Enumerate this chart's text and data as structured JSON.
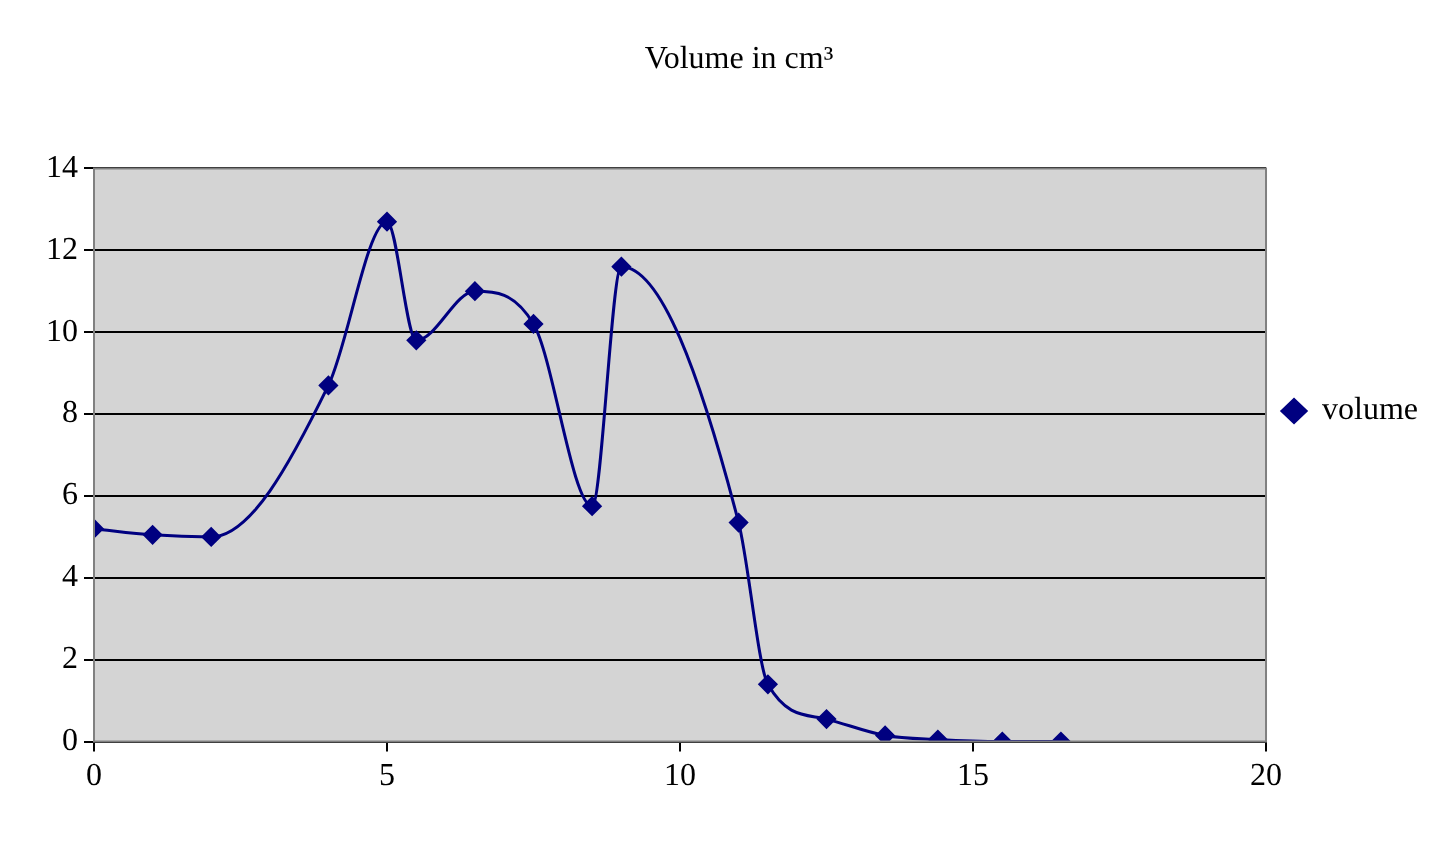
{
  "chart_data": {
    "type": "line",
    "title": "Volume in cm³",
    "x": [
      0,
      1,
      2,
      4,
      5,
      5.5,
      6.5,
      7.5,
      8.5,
      9,
      11,
      11.5,
      12.5,
      13.5,
      14.4,
      15.5,
      16.5
    ],
    "series": [
      {
        "name": "volume",
        "color": "#000080",
        "values": [
          5.2,
          5.05,
          5.0,
          8.7,
          12.7,
          9.8,
          11.0,
          10.2,
          5.75,
          11.6,
          5.35,
          1.4,
          0.55,
          0.15,
          0.05,
          0,
          0
        ]
      }
    ],
    "xlim": [
      0,
      20
    ],
    "xticks": [
      0,
      5,
      10,
      15,
      20
    ],
    "ylim": [
      0,
      14
    ],
    "yticks": [
      0,
      2,
      4,
      6,
      8,
      10,
      12,
      14
    ],
    "grid": "y",
    "legend": "right",
    "marker": "diamond",
    "line_style": "solid"
  }
}
